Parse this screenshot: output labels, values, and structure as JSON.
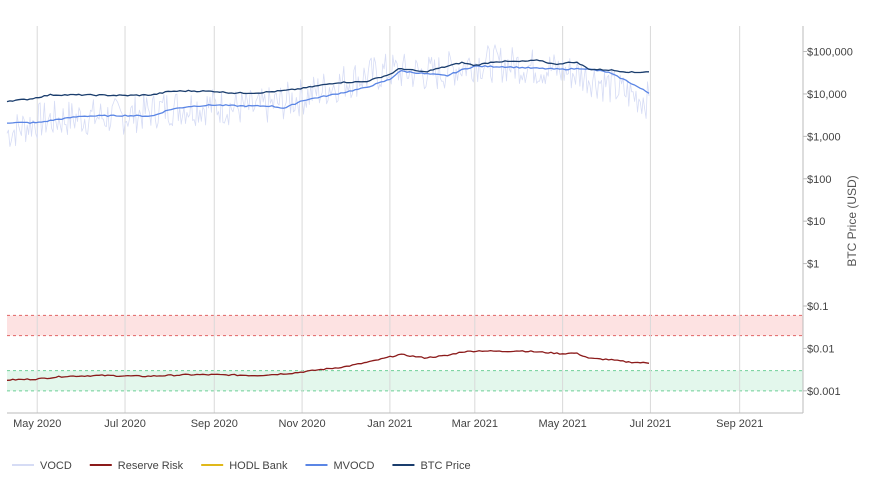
{
  "chart_data": {
    "type": "line",
    "title": "",
    "xlabel": "",
    "ylabel": "BTC Price (USD)",
    "y_scale": "log",
    "ylim": [
      0.0003,
      400000
    ],
    "xlim": [
      "2020-04-10",
      "2021-10-15"
    ],
    "grid": {
      "vertical": true,
      "horizontal": false
    },
    "legend_position": "bottom-left",
    "x_ticks": [
      {
        "date": "2020-05-01",
        "label": "May 2020"
      },
      {
        "date": "2020-07-01",
        "label": "Jul 2020"
      },
      {
        "date": "2020-09-01",
        "label": "Sep 2020"
      },
      {
        "date": "2020-11-01",
        "label": "Nov 2020"
      },
      {
        "date": "2021-01-01",
        "label": "Jan 2021"
      },
      {
        "date": "2021-03-01",
        "label": "Mar 2021"
      },
      {
        "date": "2021-05-01",
        "label": "May 2021"
      },
      {
        "date": "2021-07-01",
        "label": "Jul 2021"
      },
      {
        "date": "2021-09-01",
        "label": "Sep 2021"
      }
    ],
    "y_ticks": [
      {
        "value": 100000,
        "label": "$100,000"
      },
      {
        "value": 10000,
        "label": "$10,000"
      },
      {
        "value": 1000,
        "label": "$1,000"
      },
      {
        "value": 100,
        "label": "$100"
      },
      {
        "value": 10,
        "label": "$10"
      },
      {
        "value": 1,
        "label": "$1"
      },
      {
        "value": 0.1,
        "label": "$0.1"
      },
      {
        "value": 0.01,
        "label": "$0.01"
      },
      {
        "value": 0.001,
        "label": "$0.001"
      }
    ],
    "bands": [
      {
        "y_low": 0.02,
        "y_high": 0.06,
        "fill": "#fde2e2",
        "stroke": "#e06666"
      },
      {
        "y_low": 0.001,
        "y_high": 0.003,
        "fill": "#e3f7ec",
        "stroke": "#6fcf97"
      }
    ],
    "series": [
      {
        "name": "VOCD",
        "color": "#d6dcf5",
        "noisy": true,
        "points": [
          [
            "2020-04-10",
            1200
          ],
          [
            "2020-05-01",
            2300
          ],
          [
            "2020-06-01",
            2800
          ],
          [
            "2020-07-01",
            3000
          ],
          [
            "2020-08-01",
            4800
          ],
          [
            "2020-09-01",
            5200
          ],
          [
            "2020-10-01",
            4500
          ],
          [
            "2020-11-01",
            8500
          ],
          [
            "2020-12-01",
            20000
          ],
          [
            "2021-01-01",
            35000
          ],
          [
            "2021-02-01",
            30000
          ],
          [
            "2021-03-01",
            55000
          ],
          [
            "2021-04-01",
            48000
          ],
          [
            "2021-05-01",
            35000
          ],
          [
            "2021-05-20",
            25000
          ],
          [
            "2021-06-10",
            12000
          ],
          [
            "2021-06-30",
            7000
          ]
        ]
      },
      {
        "name": "Reserve Risk",
        "color": "#8b1a1a",
        "points": [
          [
            "2020-04-10",
            0.0018
          ],
          [
            "2020-05-01",
            0.0019
          ],
          [
            "2020-05-20",
            0.0022
          ],
          [
            "2020-06-15",
            0.0023
          ],
          [
            "2020-07-15",
            0.0022
          ],
          [
            "2020-08-15",
            0.0024
          ],
          [
            "2020-09-01",
            0.0024
          ],
          [
            "2020-10-01",
            0.0023
          ],
          [
            "2020-10-25",
            0.0026
          ],
          [
            "2020-11-15",
            0.0032
          ],
          [
            "2020-12-01",
            0.0037
          ],
          [
            "2020-12-20",
            0.005
          ],
          [
            "2021-01-08",
            0.0072
          ],
          [
            "2021-01-25",
            0.006
          ],
          [
            "2021-02-10",
            0.0068
          ],
          [
            "2021-02-20",
            0.0083
          ],
          [
            "2021-03-05",
            0.0088
          ],
          [
            "2021-03-20",
            0.0085
          ],
          [
            "2021-04-01",
            0.0088
          ],
          [
            "2021-04-15",
            0.0082
          ],
          [
            "2021-05-01",
            0.0075
          ],
          [
            "2021-05-10",
            0.0078
          ],
          [
            "2021-05-20",
            0.0058
          ],
          [
            "2021-06-01",
            0.0055
          ],
          [
            "2021-06-15",
            0.0048
          ],
          [
            "2021-07-01",
            0.0045
          ]
        ]
      },
      {
        "name": "HODL Bank",
        "color": "#e0b81a",
        "points": []
      },
      {
        "name": "MVOCD",
        "color": "#5b86e5",
        "points": [
          [
            "2020-04-10",
            2100
          ],
          [
            "2020-05-01",
            2100
          ],
          [
            "2020-05-15",
            2500
          ],
          [
            "2020-06-01",
            3000
          ],
          [
            "2020-07-01",
            3100
          ],
          [
            "2020-07-20",
            3000
          ],
          [
            "2020-08-01",
            4300
          ],
          [
            "2020-08-15",
            5100
          ],
          [
            "2020-09-01",
            5500
          ],
          [
            "2020-09-20",
            5200
          ],
          [
            "2020-10-10",
            5200
          ],
          [
            "2020-10-20",
            4600
          ],
          [
            "2020-11-01",
            7000
          ],
          [
            "2020-11-25",
            10000
          ],
          [
            "2020-12-15",
            14000
          ],
          [
            "2021-01-01",
            22000
          ],
          [
            "2021-01-08",
            35000
          ],
          [
            "2021-01-25",
            30000
          ],
          [
            "2021-02-10",
            27000
          ],
          [
            "2021-02-20",
            37000
          ],
          [
            "2021-03-01",
            45000
          ],
          [
            "2021-03-20",
            44000
          ],
          [
            "2021-04-15",
            40000
          ],
          [
            "2021-05-01",
            38000
          ],
          [
            "2021-05-15",
            40000
          ],
          [
            "2021-06-01",
            33000
          ],
          [
            "2021-06-15",
            20000
          ],
          [
            "2021-06-25",
            13000
          ],
          [
            "2021-07-01",
            10000
          ]
        ]
      },
      {
        "name": "BTC Price",
        "color": "#1a3d6d",
        "points": [
          [
            "2020-04-10",
            6800
          ],
          [
            "2020-04-25",
            7500
          ],
          [
            "2020-05-10",
            9500
          ],
          [
            "2020-06-01",
            9500
          ],
          [
            "2020-07-01",
            9200
          ],
          [
            "2020-07-20",
            9500
          ],
          [
            "2020-08-01",
            11500
          ],
          [
            "2020-08-15",
            11800
          ],
          [
            "2020-09-01",
            11500
          ],
          [
            "2020-09-15",
            10500
          ],
          [
            "2020-10-01",
            10600
          ],
          [
            "2020-10-20",
            12000
          ],
          [
            "2020-11-01",
            13500
          ],
          [
            "2020-11-25",
            18500
          ],
          [
            "2020-12-15",
            19500
          ],
          [
            "2021-01-01",
            29000
          ],
          [
            "2021-01-08",
            40000
          ],
          [
            "2021-01-25",
            33000
          ],
          [
            "2021-02-10",
            45000
          ],
          [
            "2021-02-20",
            55000
          ],
          [
            "2021-03-01",
            47000
          ],
          [
            "2021-03-15",
            58000
          ],
          [
            "2021-04-01",
            58000
          ],
          [
            "2021-04-15",
            62000
          ],
          [
            "2021-04-25",
            50000
          ],
          [
            "2021-05-10",
            57000
          ],
          [
            "2021-05-20",
            38000
          ],
          [
            "2021-06-01",
            37000
          ],
          [
            "2021-06-20",
            32000
          ],
          [
            "2021-07-01",
            34000
          ]
        ]
      }
    ]
  }
}
